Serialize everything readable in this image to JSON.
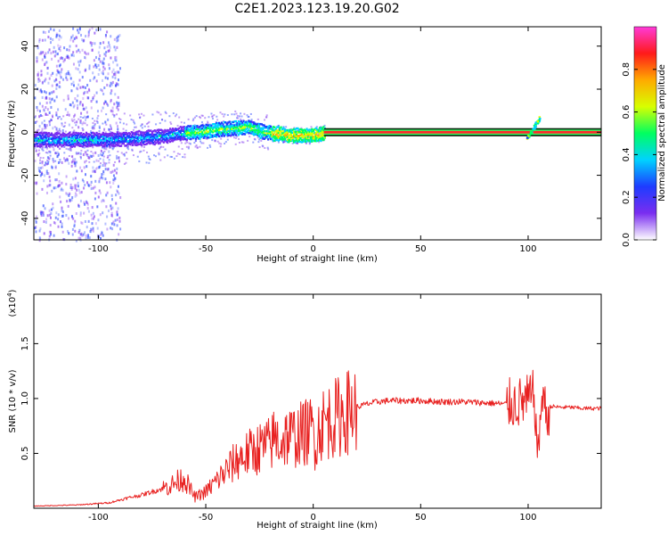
{
  "figure": {
    "title": "C2E1.2023.123.19.20.G02"
  },
  "chart_data": [
    {
      "type": "heatmap",
      "xlabel": "Height of straight line (km)",
      "ylabel": "Frequency (Hz)",
      "xlim": [
        -130,
        134
      ],
      "ylim": [
        -50,
        49
      ],
      "xticks": [
        -100,
        -50,
        0,
        50,
        100
      ],
      "yticks": [
        -40,
        -20,
        0,
        20,
        40
      ],
      "grid": false,
      "colorbar": {
        "label": "Normalized spectral amplitude",
        "range": [
          0,
          1
        ],
        "ticks": [
          "0.0",
          "0.2",
          "0.4",
          "0.6",
          "0.8"
        ],
        "colormap": [
          "#ffffff",
          "#7a2ef0",
          "#1e3cff",
          "#00d2ff",
          "#00ff60",
          "#d8ff00",
          "#ffaa00",
          "#ff1a1a",
          "#ff3ad9"
        ]
      },
      "features": {
        "scatter_region_x": [
          -130,
          -90
        ],
        "dominant_line_frequency_hz": 0,
        "dominant_line_x": [
          5,
          134
        ],
        "feature_near_x": 103
      },
      "ridge": {
        "x": [
          -130,
          -100,
          -75,
          -60,
          -40,
          -30,
          -25,
          -20,
          -10,
          0,
          5
        ],
        "y": [
          -3,
          -3,
          -2,
          0,
          2,
          3,
          1,
          0,
          -1,
          -1,
          0
        ]
      }
    },
    {
      "type": "line",
      "xlabel": "Height of straight line (km)",
      "ylabel": "SNR (10 * v/v)",
      "y_multiplier": "(x10",
      "y_multiplier_exp": "4",
      "xlim": [
        -130,
        134
      ],
      "ylim": [
        0,
        19500
      ],
      "xticks": [
        -100,
        -50,
        0,
        50,
        100
      ],
      "yticks": [
        "0.5",
        "1.0",
        "1.5"
      ],
      "grid": false,
      "series": [
        {
          "color": "#e8201f",
          "x": [
            -130,
            -110,
            -95,
            -85,
            -80,
            -75,
            -70,
            -65,
            -60,
            -58,
            -55,
            -50,
            -45,
            -40,
            -35,
            -30,
            -25,
            -20,
            -18,
            -15,
            -13,
            -10,
            -5,
            0,
            1,
            3,
            5,
            10,
            15,
            20,
            25,
            30,
            35,
            40,
            45,
            50,
            60,
            70,
            80,
            90,
            95,
            98,
            100,
            103,
            104,
            105,
            106,
            107,
            108,
            109,
            110,
            115,
            120,
            125,
            134
          ],
          "y": [
            200,
            300,
            500,
            1000,
            1200,
            1500,
            1800,
            2200,
            2800,
            2000,
            1000,
            1500,
            2500,
            3500,
            4500,
            5000,
            5500,
            5800,
            6500,
            6000,
            6500,
            6500,
            6800,
            7200,
            6000,
            7500,
            7800,
            8200,
            8700,
            9200,
            9500,
            9700,
            9800,
            9800,
            9800,
            9800,
            9700,
            9700,
            9600,
            9500,
            9600,
            9700,
            9800,
            10200,
            6000,
            5000,
            10500,
            9000,
            11000,
            6500,
            9300,
            9200,
            9200,
            9100,
            9100
          ]
        }
      ]
    }
  ]
}
